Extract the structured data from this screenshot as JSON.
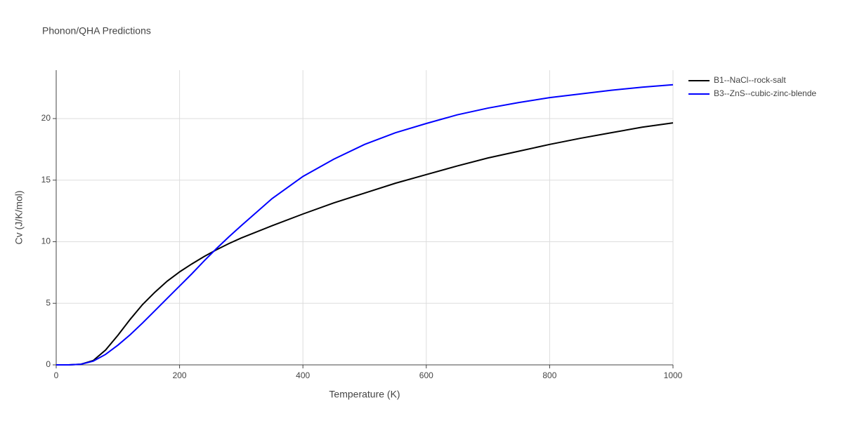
{
  "chart_data": {
    "type": "line",
    "title": "Phonon/QHA Predictions",
    "x_label": "Temperature (K)",
    "y_label": "Cv (J/K/mol)",
    "x": [
      0,
      20,
      40,
      60,
      80,
      100,
      120,
      140,
      160,
      180,
      200,
      220,
      240,
      260,
      280,
      300,
      350,
      400,
      450,
      500,
      550,
      600,
      650,
      700,
      750,
      800,
      850,
      900,
      950,
      1000
    ],
    "series": [
      {
        "name": "B1--NaCl--rock-salt",
        "color": "#000000",
        "values": [
          0,
          0,
          0.05,
          0.35,
          1.2,
          2.4,
          3.7,
          4.9,
          5.9,
          6.8,
          7.55,
          8.2,
          8.8,
          9.35,
          9.85,
          10.3,
          11.3,
          12.25,
          13.15,
          13.95,
          14.75,
          15.45,
          16.15,
          16.8,
          17.35,
          17.9,
          18.4,
          18.85,
          19.3,
          19.65
        ]
      },
      {
        "name": "B3--ZnS--cubic-zinc-blende",
        "color": "#0000ff",
        "values": [
          0,
          0,
          0.05,
          0.3,
          0.85,
          1.6,
          2.45,
          3.4,
          4.4,
          5.4,
          6.4,
          7.4,
          8.45,
          9.45,
          10.4,
          11.3,
          13.5,
          15.3,
          16.7,
          17.9,
          18.85,
          19.6,
          20.3,
          20.85,
          21.3,
          21.7,
          22.0,
          22.3,
          22.55,
          22.75
        ]
      }
    ],
    "xlim": [
      0,
      1000
    ],
    "xticks": [
      0,
      200,
      400,
      600,
      800,
      1000
    ],
    "ylim": [
      0,
      23.93
    ],
    "yticks": [
      0,
      5,
      10,
      15,
      20
    ],
    "grid": true,
    "legend": "top-right"
  }
}
